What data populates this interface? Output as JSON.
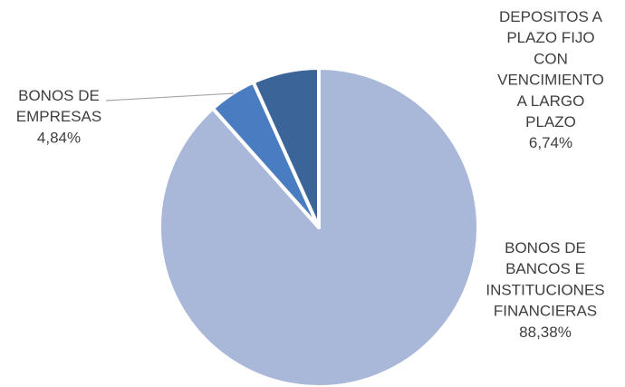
{
  "chart_data": {
    "type": "pie",
    "start_angle_deg": 0,
    "direction": "clockwise",
    "slices": [
      {
        "category": "BONOS DE BANCOS E INSTITUCIONES FINANCIERAS",
        "label_lines": [
          "BONOS DE",
          "BANCOS E",
          "INSTITUCIONES",
          "FINANCIERAS"
        ],
        "value_label": "88,38%",
        "value": 88.38,
        "color": "#a9b8d8"
      },
      {
        "category": "BONOS DE EMPRESAS",
        "label_lines": [
          "BONOS DE",
          "EMPRESAS"
        ],
        "value_label": "4,84%",
        "value": 4.84,
        "color": "#4a7cc1"
      },
      {
        "category": "DEPOSITOS A PLAZO FIJO CON VENCIMIENTO A LARGO PLAZO",
        "label_lines": [
          "DEPOSITOS A",
          "PLAZO FIJO",
          "CON",
          "VENCIMIENTO",
          "A LARGO",
          "PLAZO"
        ],
        "value_label": "6,74%",
        "value": 6.74,
        "color": "#3b6498"
      }
    ]
  }
}
